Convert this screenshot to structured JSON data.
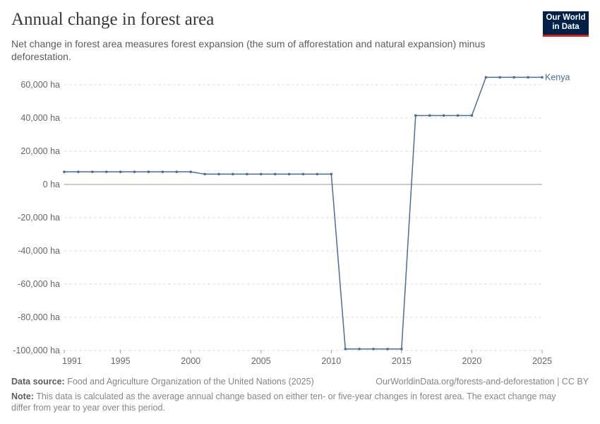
{
  "header": {
    "title": "Annual change in forest area",
    "subtitle": "Net change in forest area measures forest expansion (the sum of afforestation and natural expansion) minus deforestation.",
    "logo": "Our World in Data"
  },
  "chart_data": {
    "type": "line",
    "title": "Annual change in forest area",
    "xlabel": "",
    "ylabel": "",
    "xlim": [
      1991,
      2025
    ],
    "ylim": [
      -100000,
      64500
    ],
    "grid": true,
    "legend": "right-end label",
    "x_ticks": [
      "1991",
      "1995",
      "2000",
      "2005",
      "2010",
      "2015",
      "2020",
      "2025"
    ],
    "y_ticks": [
      {
        "v": 60000,
        "label": "60,000 ha"
      },
      {
        "v": 40000,
        "label": "40,000 ha"
      },
      {
        "v": 20000,
        "label": "20,000 ha"
      },
      {
        "v": 0,
        "label": "0 ha"
      },
      {
        "v": -20000,
        "label": "-20,000 ha"
      },
      {
        "v": -40000,
        "label": "-40,000 ha"
      },
      {
        "v": -60000,
        "label": "-60,000 ha"
      },
      {
        "v": -80000,
        "label": "-80,000 ha"
      },
      {
        "v": -100000,
        "label": "-100,000 ha"
      }
    ],
    "series": [
      {
        "name": "Kenya",
        "color": "#4c6a9c",
        "x": [
          1991,
          1992,
          1993,
          1994,
          1995,
          1996,
          1997,
          1998,
          1999,
          2000,
          2001,
          2002,
          2003,
          2004,
          2005,
          2006,
          2007,
          2008,
          2009,
          2010,
          2011,
          2012,
          2013,
          2014,
          2015,
          2016,
          2017,
          2018,
          2019,
          2020,
          2021,
          2022,
          2023,
          2024,
          2025
        ],
        "y": [
          7600,
          7600,
          7600,
          7600,
          7600,
          7600,
          7600,
          7600,
          7600,
          7600,
          6200,
          6200,
          6200,
          6200,
          6200,
          6200,
          6200,
          6200,
          6200,
          6200,
          -99100,
          -99100,
          -99100,
          -99100,
          -99100,
          41500,
          41500,
          41500,
          41500,
          41500,
          64500,
          64500,
          64500,
          64500,
          64500
        ]
      }
    ]
  },
  "footer": {
    "source_label": "Data source:",
    "source": "Food and Agriculture Organization of the United Nations (2025)",
    "url": "OurWorldinData.org/forests-and-deforestation | CC BY",
    "note_label": "Note:",
    "note": "This data is calculated as the average annual change based on either ten- or five-year changes in forest area. The exact change may differ from year to year over this period."
  }
}
